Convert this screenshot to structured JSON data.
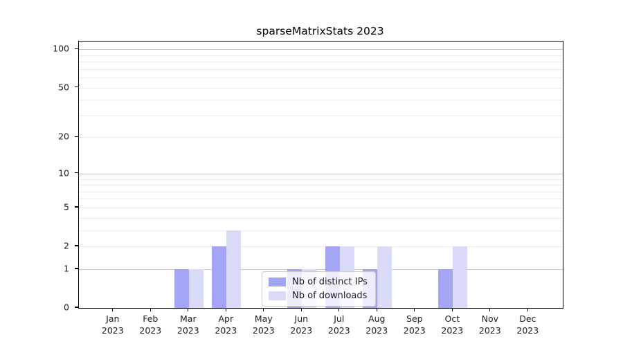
{
  "chart_data": {
    "type": "bar",
    "title": "sparseMatrixStats 2023",
    "categories": [
      "Jan",
      "Feb",
      "Mar",
      "Apr",
      "May",
      "Jun",
      "Jul",
      "Aug",
      "Sep",
      "Oct",
      "Nov",
      "Dec"
    ],
    "x_year_label": "2023",
    "series": [
      {
        "name": "Nb of distinct IPs",
        "color": "#a5a5f6",
        "values": [
          0,
          0,
          1,
          2,
          0,
          1,
          2,
          1,
          0,
          1,
          0,
          0
        ]
      },
      {
        "name": "Nb of downloads",
        "color": "#dadaf9",
        "values": [
          0,
          0,
          1,
          3,
          0,
          1,
          2,
          2,
          0,
          2,
          0,
          0
        ]
      }
    ],
    "yscale": "log1p",
    "ylim": [
      0,
      115
    ],
    "y_ticks": [
      0,
      1,
      2,
      5,
      10,
      20,
      50,
      100
    ],
    "y_major_gridlines": [
      1,
      10,
      100
    ],
    "y_minor_gridlines": [
      2,
      3,
      4,
      5,
      6,
      7,
      8,
      9,
      20,
      30,
      40,
      50,
      60,
      70,
      80,
      90
    ],
    "grid": "horizontal",
    "legend_position": "lower center",
    "legend_items": [
      "Nb of distinct IPs",
      "Nb of downloads"
    ]
  },
  "colors": {
    "major_grid": "#c6c6c6",
    "minor_grid": "#ececec",
    "spine": "#000000",
    "text": "#1c1c1c",
    "background": "#ffffff",
    "legend_border": "#cccccc"
  }
}
